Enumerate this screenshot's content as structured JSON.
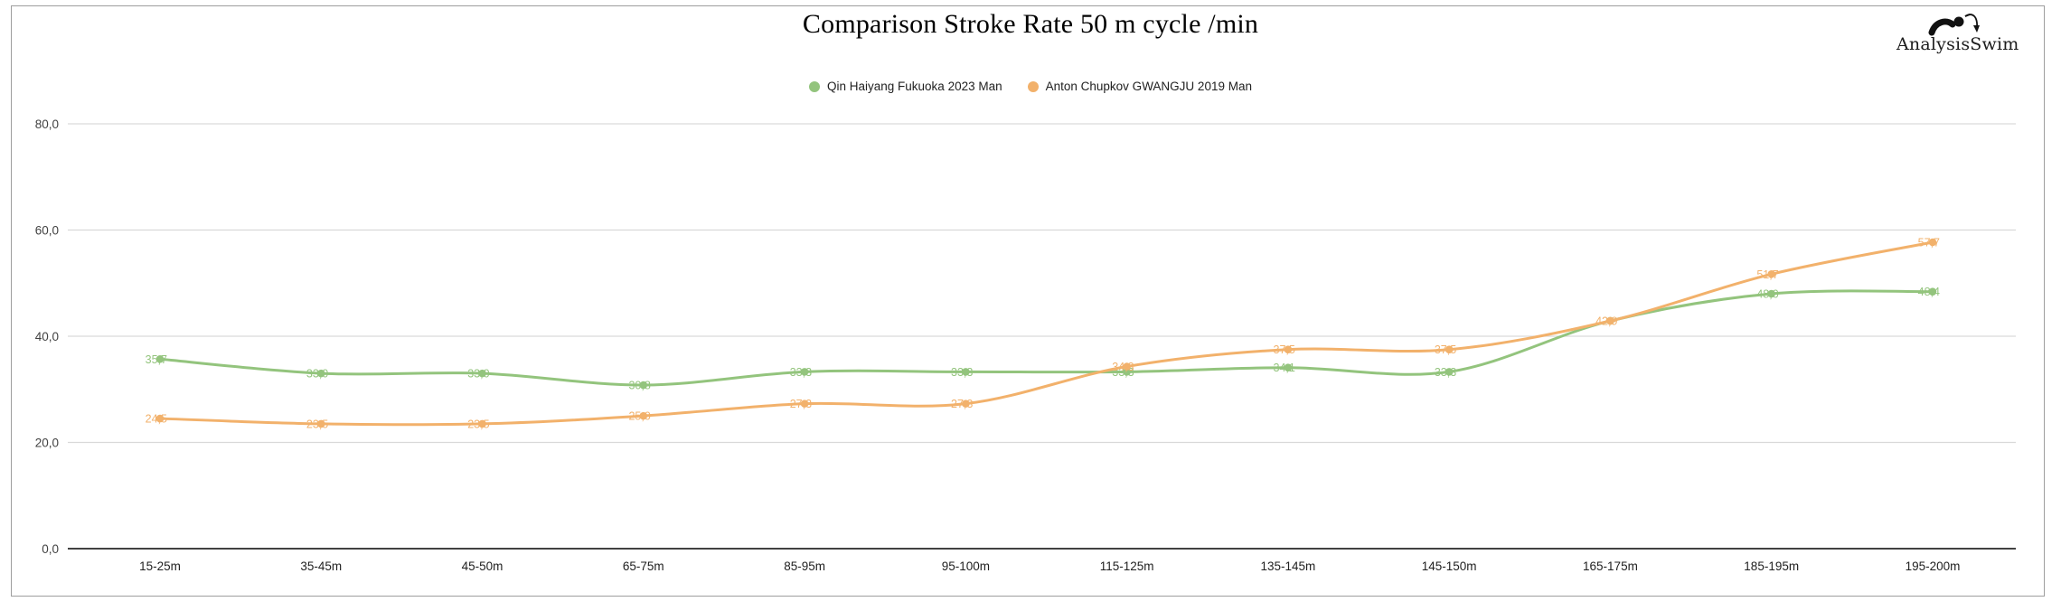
{
  "title": "Comparison Stroke Rate 50 m cycle /min",
  "logo": {
    "text": "AnalysisSwim",
    "icon": "swimmer-icon"
  },
  "legend": [
    {
      "label": "Qin Haiyang Fukuoka 2023 Man",
      "color": "#93c47d"
    },
    {
      "label": "Anton Chupkov GWANGJU 2019 Man",
      "color": "#f2b16b"
    }
  ],
  "chart_data": {
    "type": "line",
    "title": "Comparison Stroke Rate 50 m cycle /min",
    "categories": [
      "15-25m",
      "35-45m",
      "45-50m",
      "65-75m",
      "85-95m",
      "95-100m",
      "115-125m",
      "135-145m",
      "145-150m",
      "165-175m",
      "185-195m",
      "195-200m"
    ],
    "series": [
      {
        "name": "Qin Haiyang Fukuoka 2023 Man",
        "color": "#93c47d",
        "values": [
          35.7,
          33.0,
          33.0,
          30.8,
          33.3,
          33.3,
          33.3,
          34.1,
          33.3,
          42.9,
          48.0,
          48.4
        ],
        "labels": [
          "35,7",
          "33,0",
          "33,0",
          "30,8",
          "33,3",
          "33,3",
          "33,3",
          "34,1",
          "33,3",
          "",
          "48,0",
          "48,4"
        ]
      },
      {
        "name": "Anton Chupkov GWANGJU 2019 Man",
        "color": "#f2b16b",
        "values": [
          24.5,
          23.5,
          23.5,
          25.0,
          27.3,
          27.3,
          34.3,
          37.5,
          37.5,
          42.9,
          51.7,
          57.7
        ],
        "labels": [
          "24,5",
          "23,5",
          "23,5",
          "25,0",
          "27,3",
          "27,3",
          "34,3",
          "37,5",
          "37,5",
          "42,9",
          "51,7",
          "57,7"
        ]
      }
    ],
    "y_ticks": [
      "0,0",
      "20,0",
      "40,0",
      "60,0",
      "80,0"
    ],
    "y_tick_values": [
      0,
      20,
      40,
      60,
      80
    ],
    "ylim": [
      0,
      80
    ],
    "xlabel": "",
    "ylabel": "",
    "grid": true,
    "legend_position": "top",
    "data_labels": true
  }
}
